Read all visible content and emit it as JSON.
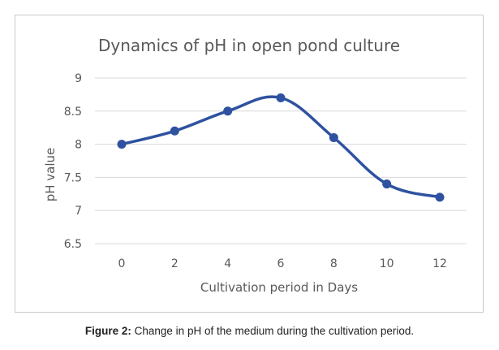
{
  "chart_data": {
    "type": "line",
    "title": "Dynamics of pH in open pond culture",
    "xlabel": "Cultivation period  in Days",
    "ylabel": "pH value",
    "x": [
      0,
      2,
      4,
      6,
      8,
      10,
      12
    ],
    "xticks": [
      "0",
      "2",
      "4",
      "6",
      "8",
      "10",
      "12"
    ],
    "ylim": [
      6.5,
      9
    ],
    "yticks": [
      "6.5",
      "7",
      "7.5",
      "8",
      "8.5",
      "9"
    ],
    "series": [
      {
        "values": [
          8.0,
          8.2,
          8.5,
          8.7,
          8.1,
          7.4,
          7.2
        ]
      }
    ],
    "grid": true,
    "legend": "none",
    "colors": {
      "line": "#2f52a0",
      "marker": "#2f52a0",
      "grid": "#d9d9d9",
      "text": "#595959"
    }
  },
  "caption": {
    "label": "Figure 2:",
    "text": " Change in pH of the medium during the cultivation period."
  }
}
